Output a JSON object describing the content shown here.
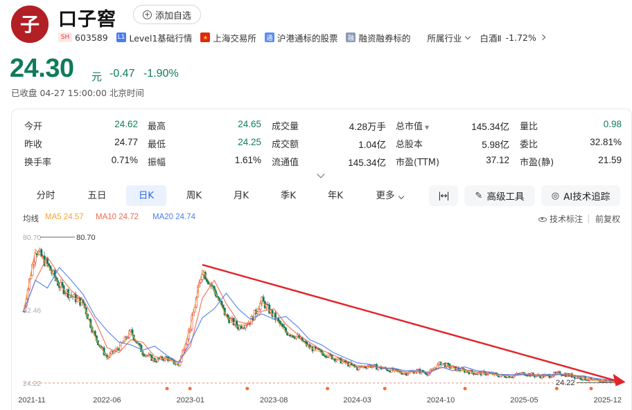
{
  "header": {
    "logo_glyph": "子",
    "name": "口子窖",
    "add_label": "添加自选"
  },
  "tags": {
    "market_badge": "SH",
    "code": "603589",
    "level_badge": "L1",
    "level_label": "Level1基础行情",
    "exchange_label": "上海交易所",
    "hk_badge": "通",
    "hk_label": "沪港通标的股票",
    "margin_badge": "融",
    "margin_label": "融资融券标的",
    "industry_label": "所属行业",
    "sector_name": "白酒Ⅱ",
    "sector_change": "-1.72%"
  },
  "quote": {
    "price": "24.30",
    "unit": "元",
    "change": "-0.47",
    "change_pct": "-1.90%",
    "status": "已收盘  04-27 15:00:00 北京时间"
  },
  "stats": [
    [
      [
        "今开",
        "24.62",
        "green"
      ],
      [
        "最高",
        "24.65",
        "green"
      ],
      [
        "成交量",
        "4.28万手",
        ""
      ],
      [
        "总市值",
        "145.34亿",
        ""
      ],
      [
        "量比",
        "0.98",
        "green"
      ]
    ],
    [
      [
        "昨收",
        "24.77",
        ""
      ],
      [
        "最低",
        "24.25",
        "green"
      ],
      [
        "成交额",
        "1.04亿",
        ""
      ],
      [
        "总股本",
        "5.98亿",
        ""
      ],
      [
        "委比",
        "32.81%",
        ""
      ]
    ],
    [
      [
        "换手率",
        "0.71%",
        ""
      ],
      [
        "振幅",
        "1.61%",
        ""
      ],
      [
        "流通值",
        "145.34亿",
        ""
      ],
      [
        "市盈(TTM)",
        "37.12",
        ""
      ],
      [
        "市盈(静)",
        "21.59",
        ""
      ]
    ]
  ],
  "tabs": [
    "分时",
    "五日",
    "日K",
    "周K",
    "月K",
    "季K",
    "年K",
    "更多"
  ],
  "active_tab": "日K",
  "tools": {
    "fit_icon": "|↔|",
    "advanced_tool": "高级工具",
    "ai_tool": "AI技术追踪"
  },
  "ma": {
    "label": "均线",
    "ma5": "MA5 24.57",
    "ma10": "MA10 24.72",
    "ma20": "MA20 24.74",
    "tech_label": "技术标注",
    "adjust_label": "前复权"
  },
  "colors": {
    "down": "#0e7b5b",
    "up": "#e23c3c",
    "ma5": "#f2a33a",
    "ma10": "#ef6a4c",
    "ma20": "#4a7cf0",
    "accent": "#2f6ae0",
    "trendline": "#e0262b"
  },
  "chart_data": {
    "type": "candlestick",
    "y_labels": [
      "80.70",
      "52.46",
      "24.22"
    ],
    "max_label": "80.70",
    "min_label": "24.22",
    "x_ticks": [
      "2021-11",
      "2022-06",
      "2023-01",
      "2023-08",
      "2024-03",
      "2024-10",
      "2025-05",
      "2025-12"
    ],
    "x_tick_index": [
      0,
      7,
      14,
      21,
      28,
      35,
      42,
      49
    ],
    "ylim": [
      24.22,
      80.7
    ],
    "monthly_close": [
      52,
      76,
      70,
      62,
      58,
      55,
      42,
      34,
      38,
      44,
      36,
      33,
      34,
      31,
      46,
      68,
      60,
      50,
      46,
      48,
      56,
      50,
      44,
      42,
      38,
      36,
      34,
      32,
      30,
      31,
      30,
      29,
      28,
      29,
      28,
      32,
      30,
      29,
      28,
      28,
      27,
      27,
      28,
      27,
      27,
      28,
      27,
      26,
      25,
      25,
      24.3
    ],
    "trend_line": {
      "from": {
        "x_index": 15,
        "y": 70
      },
      "to": {
        "x_index": 50.5,
        "y": 24.6
      }
    }
  }
}
